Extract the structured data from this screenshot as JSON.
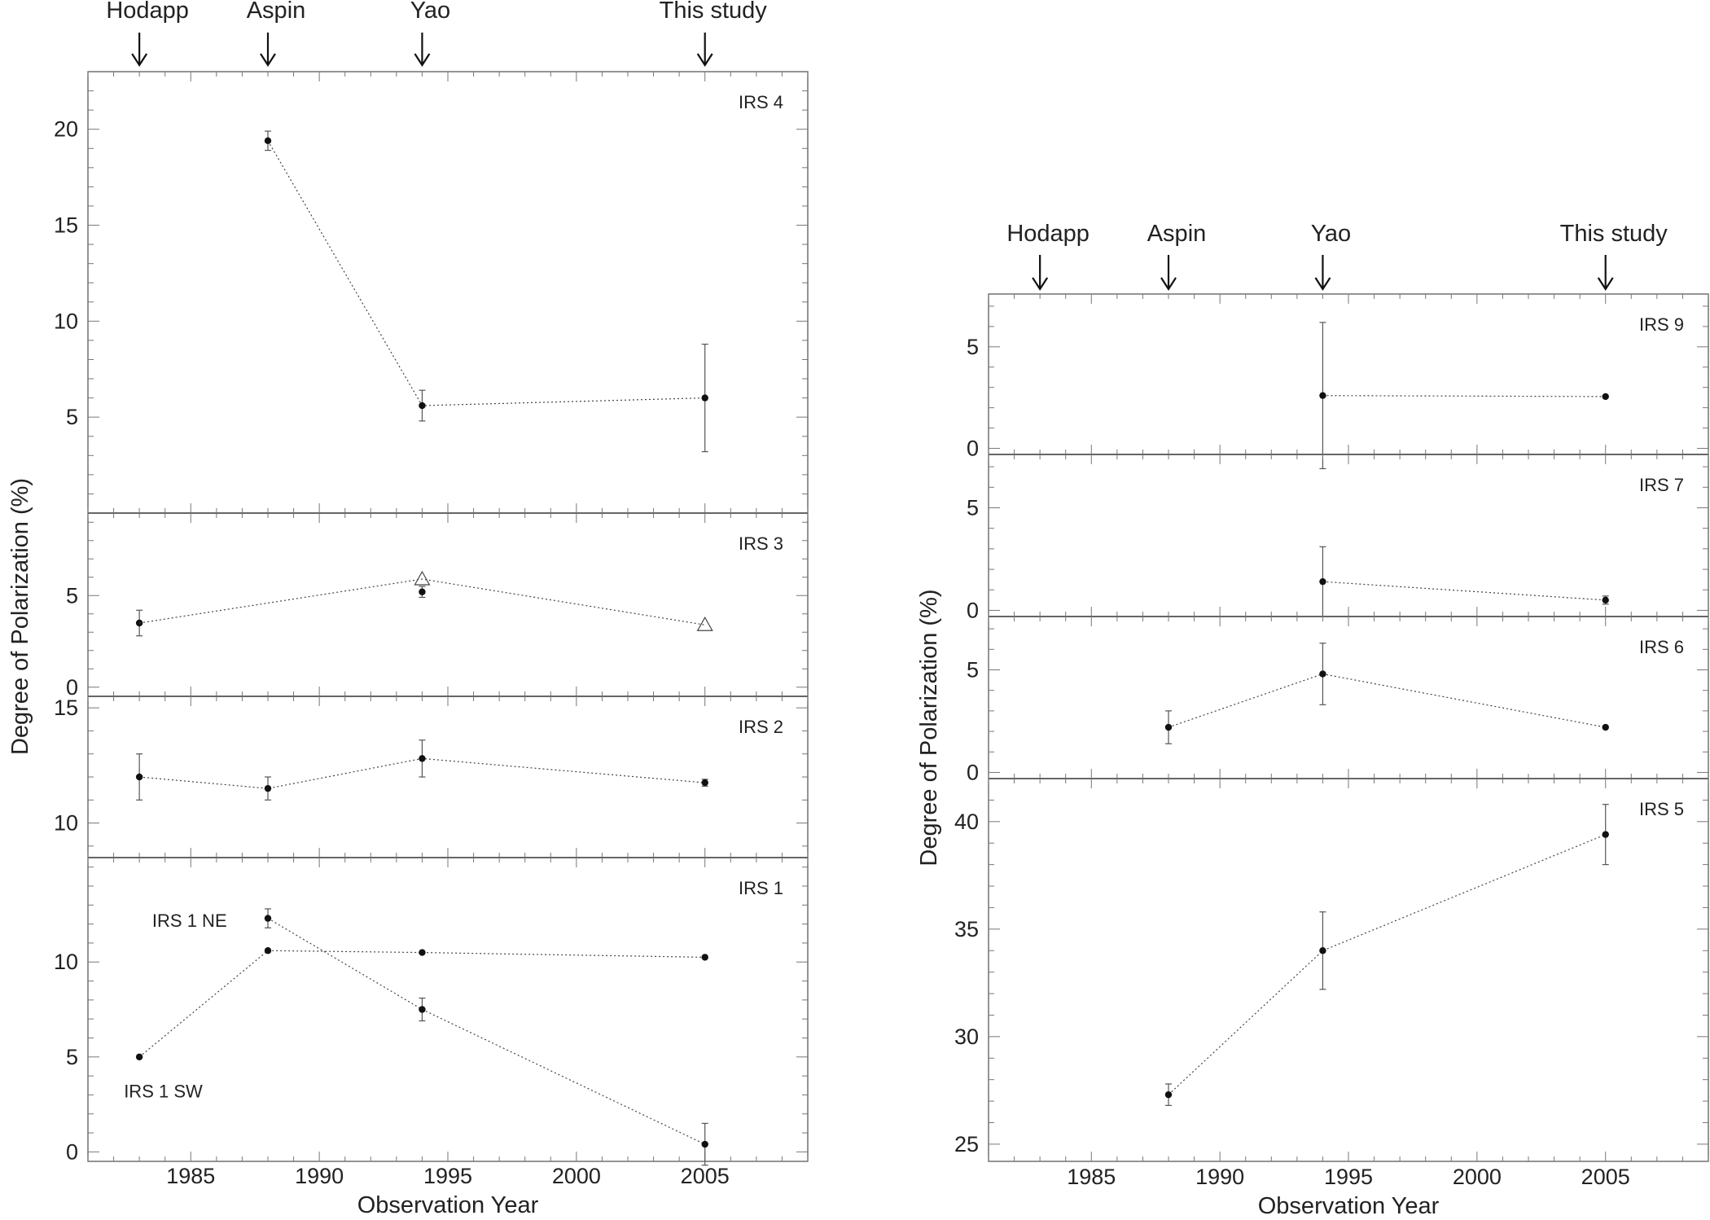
{
  "chart_data": [
    {
      "type": "scatter",
      "figure": "left",
      "xlabel": "Observation Year",
      "ylabel": "Degree of Polarization (%)",
      "xlim": [
        1981,
        2009
      ],
      "xticks": [
        1985,
        1990,
        1995,
        2000,
        2005
      ],
      "top_markers": [
        {
          "label": "Hodapp",
          "year": 1983
        },
        {
          "label": "Aspin",
          "year": 1988
        },
        {
          "label": "Yao",
          "year": 1994
        },
        {
          "label": "This study",
          "year": 2005
        }
      ],
      "panels": [
        {
          "name": "IRS 4",
          "ylim": [
            0,
            23
          ],
          "yticks": [
            5,
            10,
            15,
            20
          ],
          "series": [
            {
              "marker": "dot",
              "points": [
                {
                  "x": 1988,
                  "y": 19.4,
                  "err": 0.5
                },
                {
                  "x": 1994,
                  "y": 5.6,
                  "err": 0.8
                },
                {
                  "x": 2005,
                  "y": 6.0,
                  "err": 2.8
                }
              ]
            }
          ]
        },
        {
          "name": "IRS 3",
          "ylim": [
            -0.5,
            9.5
          ],
          "yticks": [
            0,
            5
          ],
          "series": [
            {
              "marker": "dot",
              "connect": false,
              "points": [
                {
                  "x": 1983,
                  "y": 3.5,
                  "err": 0.7
                },
                {
                  "x": 1994,
                  "y": 5.2,
                  "err": 0.3
                }
              ]
            },
            {
              "marker": "triangle",
              "connect": false,
              "points": [
                {
                  "x": 1994,
                  "y": 5.9
                },
                {
                  "x": 2005,
                  "y": 3.4
                }
              ]
            },
            {
              "marker": "none",
              "connect": true,
              "points": [
                {
                  "x": 1983,
                  "y": 3.5
                },
                {
                  "x": 1994,
                  "y": 5.9
                },
                {
                  "x": 2005,
                  "y": 3.4
                }
              ]
            }
          ]
        },
        {
          "name": "IRS 2",
          "ylim": [
            8.5,
            15.5
          ],
          "yticks": [
            10,
            15
          ],
          "series": [
            {
              "marker": "dot",
              "points": [
                {
                  "x": 1983,
                  "y": 12.0,
                  "err": 1.0
                },
                {
                  "x": 1988,
                  "y": 11.5,
                  "err": 0.5
                },
                {
                  "x": 1994,
                  "y": 12.8,
                  "err": 0.8
                },
                {
                  "x": 2005,
                  "y": 11.75,
                  "err": 0.15
                }
              ]
            }
          ]
        },
        {
          "name": "IRS 1",
          "ylim": [
            -0.5,
            15.5
          ],
          "yticks": [
            0,
            5,
            10
          ],
          "annotations": [
            {
              "text": "IRS 1 NE",
              "x": 1983.5,
              "y": 12.2
            },
            {
              "text": "IRS 1 SW",
              "x": 1982.4,
              "y": 3.2
            }
          ],
          "series": [
            {
              "name": "IRS 1 NE",
              "marker": "dot",
              "points": [
                {
                  "x": 1988,
                  "y": 12.3,
                  "err": 0.5
                },
                {
                  "x": 1994,
                  "y": 7.5,
                  "err": 0.6
                },
                {
                  "x": 2005,
                  "y": 0.4,
                  "err": 1.1
                }
              ]
            },
            {
              "name": "IRS 1 SW",
              "marker": "dot",
              "points": [
                {
                  "x": 1983,
                  "y": 5.0
                },
                {
                  "x": 1988,
                  "y": 10.6
                },
                {
                  "x": 1994,
                  "y": 10.5
                },
                {
                  "x": 2005,
                  "y": 10.25
                }
              ]
            }
          ]
        }
      ]
    },
    {
      "type": "scatter",
      "figure": "right",
      "xlabel": "Observation Year",
      "ylabel": "Degree of Polarization (%)",
      "xlim": [
        1981,
        2009
      ],
      "xticks": [
        1985,
        1990,
        1995,
        2000,
        2005
      ],
      "top_markers": [
        {
          "label": "Hodapp",
          "year": 1983
        },
        {
          "label": "Aspin",
          "year": 1988
        },
        {
          "label": "Yao",
          "year": 1994
        },
        {
          "label": "This study",
          "year": 2005
        }
      ],
      "panels": [
        {
          "name": "IRS 9",
          "ylim": [
            -0.3,
            7.6
          ],
          "yticks": [
            0,
            5
          ],
          "series": [
            {
              "marker": "dot",
              "points": [
                {
                  "x": 1994,
                  "y": 2.6,
                  "err": 3.6
                },
                {
                  "x": 2005,
                  "y": 2.55
                }
              ]
            }
          ]
        },
        {
          "name": "IRS 7",
          "ylim": [
            -0.3,
            7.6
          ],
          "yticks": [
            0,
            5
          ],
          "series": [
            {
              "marker": "dot",
              "points": [
                {
                  "x": 1994,
                  "y": 1.4,
                  "err": 1.7
                },
                {
                  "x": 2005,
                  "y": 0.5,
                  "err": 0.2
                }
              ]
            }
          ]
        },
        {
          "name": "IRS 6",
          "ylim": [
            -0.3,
            7.6
          ],
          "yticks": [
            0,
            5
          ],
          "series": [
            {
              "marker": "dot",
              "points": [
                {
                  "x": 1988,
                  "y": 2.2,
                  "err": 0.8
                },
                {
                  "x": 1994,
                  "y": 4.8,
                  "err": 1.5
                },
                {
                  "x": 2005,
                  "y": 2.2
                }
              ]
            }
          ]
        },
        {
          "name": "IRS 5",
          "ylim": [
            24.2,
            42.0
          ],
          "yticks": [
            25,
            30,
            35,
            40
          ],
          "series": [
            {
              "marker": "dot",
              "points": [
                {
                  "x": 1988,
                  "y": 27.3,
                  "err": 0.5
                },
                {
                  "x": 1994,
                  "y": 34.0,
                  "err": 1.8
                },
                {
                  "x": 2005,
                  "y": 39.4,
                  "err": 1.4
                }
              ]
            }
          ]
        }
      ]
    }
  ]
}
